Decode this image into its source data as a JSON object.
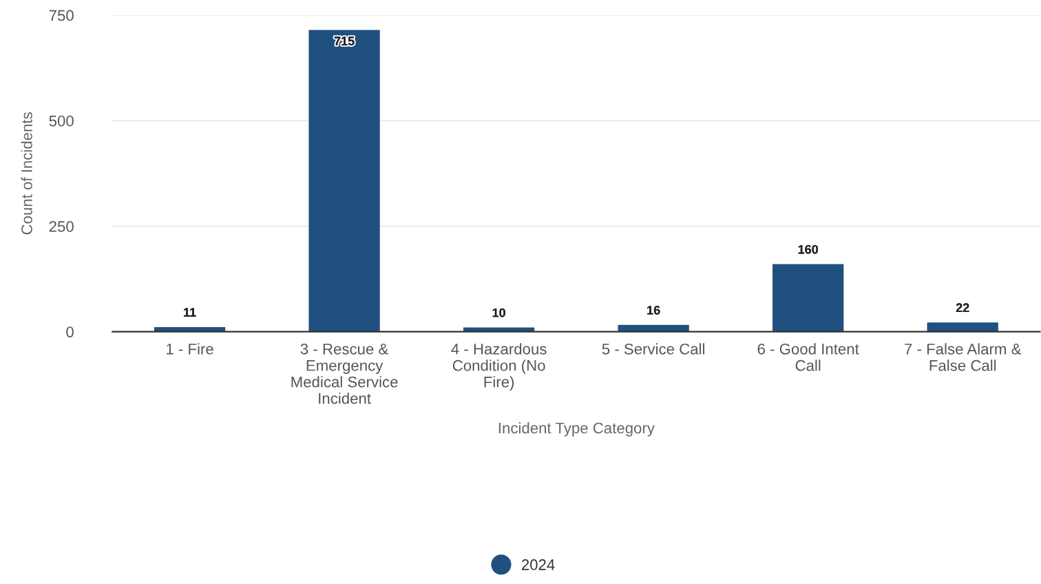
{
  "chart_data": {
    "type": "bar",
    "categories": [
      "1 - Fire",
      "3 - Rescue & Emergency Medical Service Incident",
      "4 - Hazardous Condition (No Fire)",
      "5 - Service Call",
      "6 - Good Intent Call",
      "7 - False Alarm & False Call"
    ],
    "series": [
      {
        "name": "2024",
        "color": "#1f5080",
        "values": [
          11,
          715,
          10,
          16,
          160,
          22
        ]
      }
    ],
    "xlabel": "Incident Type Category",
    "ylabel": "Count of Incidents",
    "ylim": [
      0,
      750
    ],
    "yticks": [
      0,
      250,
      500,
      750
    ],
    "grid": "y",
    "legend": "bottom",
    "data_labels": true
  }
}
